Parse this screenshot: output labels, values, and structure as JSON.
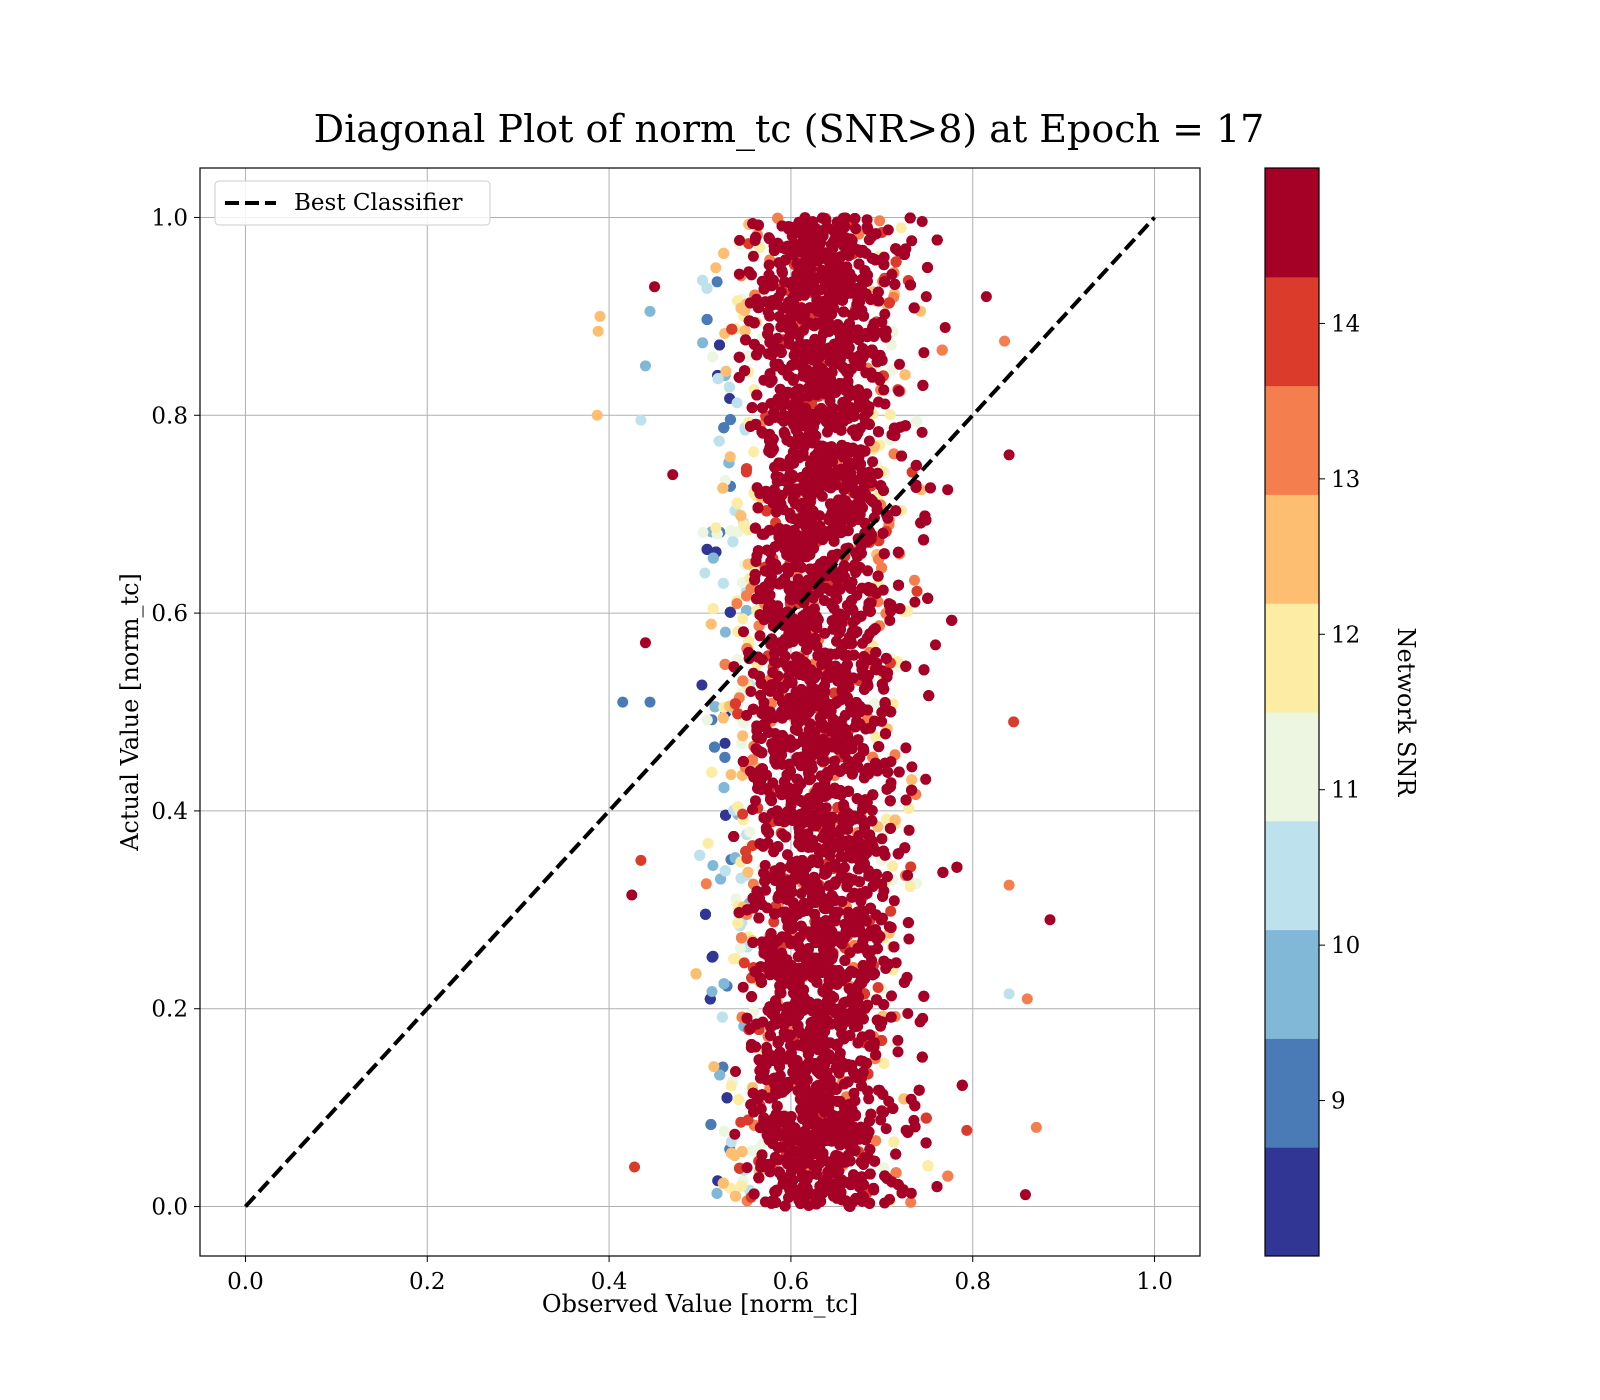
{
  "chart_data": {
    "type": "scatter",
    "title": "Diagonal Plot of norm_tc (SNR>8) at Epoch = 17",
    "xlabel": "Observed Value [norm_tc]",
    "ylabel": "Actual Value [norm_tc]",
    "xlim": [
      -0.05,
      1.05
    ],
    "ylim": [
      -0.05,
      1.05
    ],
    "xticks": [
      "0.0",
      "0.2",
      "0.4",
      "0.6",
      "0.8",
      "1.0"
    ],
    "yticks": [
      "0.0",
      "0.2",
      "0.4",
      "0.6",
      "0.8",
      "1.0"
    ],
    "grid": true,
    "legend": {
      "position": "upper-left",
      "entries": [
        "Best Classifier"
      ]
    },
    "series": [
      {
        "name": "Best Classifier",
        "kind": "line",
        "style": "dashed",
        "color": "#000000",
        "x": [
          0.0,
          1.0
        ],
        "y": [
          0.0,
          1.0
        ]
      }
    ],
    "scatter_cloud": {
      "x_range_core": [
        0.5,
        0.78
      ],
      "x_center": 0.63,
      "y_range": [
        0.0,
        1.0
      ],
      "color_by": "Network SNR"
    },
    "outliers": [
      {
        "x": 0.39,
        "y": 0.9,
        "snr": 12.5
      },
      {
        "x": 0.388,
        "y": 0.885,
        "snr": 12.5
      },
      {
        "x": 0.387,
        "y": 0.8,
        "snr": 12.5
      },
      {
        "x": 0.445,
        "y": 0.905,
        "snr": 9.8
      },
      {
        "x": 0.44,
        "y": 0.85,
        "snr": 9.8
      },
      {
        "x": 0.435,
        "y": 0.795,
        "snr": 10.5
      },
      {
        "x": 0.44,
        "y": 0.57,
        "snr": 14.8
      },
      {
        "x": 0.415,
        "y": 0.51,
        "snr": 9.3
      },
      {
        "x": 0.445,
        "y": 0.51,
        "snr": 9.3
      },
      {
        "x": 0.435,
        "y": 0.35,
        "snr": 14.2
      },
      {
        "x": 0.425,
        "y": 0.315,
        "snr": 14.8
      },
      {
        "x": 0.428,
        "y": 0.04,
        "snr": 14.2
      },
      {
        "x": 0.885,
        "y": 0.29,
        "snr": 14.8
      },
      {
        "x": 0.87,
        "y": 0.08,
        "snr": 13.2
      },
      {
        "x": 0.86,
        "y": 0.21,
        "snr": 13.2
      },
      {
        "x": 0.84,
        "y": 0.76,
        "snr": 14.8
      },
      {
        "x": 0.845,
        "y": 0.49,
        "snr": 14.2
      },
      {
        "x": 0.835,
        "y": 0.875,
        "snr": 13.2
      },
      {
        "x": 0.815,
        "y": 0.92,
        "snr": 14.8
      },
      {
        "x": 0.84,
        "y": 0.325,
        "snr": 13.2
      },
      {
        "x": 0.858,
        "y": 0.012,
        "snr": 14.8
      },
      {
        "x": 0.84,
        "y": 0.215,
        "snr": 10.5
      },
      {
        "x": 0.47,
        "y": 0.74,
        "snr": 14.8
      },
      {
        "x": 0.45,
        "y": 0.93,
        "snr": 14.8
      }
    ],
    "colorbar": {
      "label": "Network SNR",
      "range": [
        8,
        15
      ],
      "tick_labels": [
        "9",
        "10",
        "11",
        "12",
        "13",
        "14"
      ],
      "ticks": [
        9,
        10,
        11,
        12,
        13,
        14
      ],
      "colors": [
        "#313695",
        "#4575b4",
        "#74add1",
        "#abd9e9",
        "#e0f3f8",
        "#fee090",
        "#fdae61",
        "#f46d43",
        "#d73027",
        "#a50026"
      ],
      "levels": [
        "#313695",
        "#4a7bb7",
        "#82b8d7",
        "#bde2ed",
        "#ecf6e0",
        "#fdeca4",
        "#fdbe71",
        "#f47e4d",
        "#db3b2b",
        "#a50026"
      ]
    }
  }
}
